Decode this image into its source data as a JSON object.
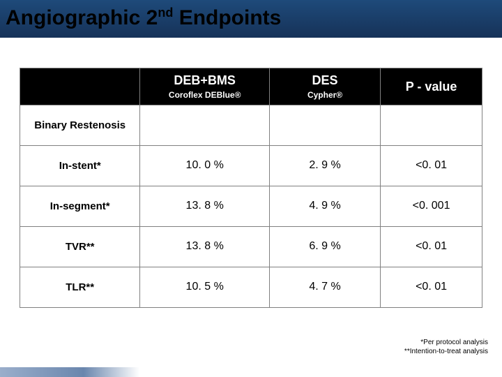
{
  "title": {
    "pre": "Angiographic 2",
    "sup": "nd",
    "post": " Endpoints"
  },
  "colors": {
    "header_bg": "#000000",
    "header_text": "#ffffff",
    "cell_border": "#808080",
    "page_bg": "#ffffff",
    "title_strip_a": "#1e4a7a",
    "title_strip_b": "#163258"
  },
  "table": {
    "headers": {
      "col1_main": "DEB+BMS",
      "col1_sub": "Coroflex DEBlue®",
      "col2_main": "DES",
      "col2_sub": "Cypher®",
      "col3": "P - value"
    },
    "section_label": "Binary Restenosis",
    "rows": [
      {
        "label": "In-stent*",
        "c1": "10. 0 %",
        "c2": "2. 9 %",
        "c3": "<0. 01"
      },
      {
        "label": "In-segment*",
        "c1": "13. 8 %",
        "c2": "4. 9 %",
        "c3": "<0. 001"
      },
      {
        "label": "TVR**",
        "c1": "13. 8 %",
        "c2": "6. 9 %",
        "c3": "<0. 01"
      },
      {
        "label": "TLR**",
        "c1": "10. 5 %",
        "c2": "4. 7 %",
        "c3": "<0. 01"
      }
    ]
  },
  "footnotes": {
    "line1": "*Per protocol analysis",
    "line2": "**Intention-to-treat analysis"
  }
}
